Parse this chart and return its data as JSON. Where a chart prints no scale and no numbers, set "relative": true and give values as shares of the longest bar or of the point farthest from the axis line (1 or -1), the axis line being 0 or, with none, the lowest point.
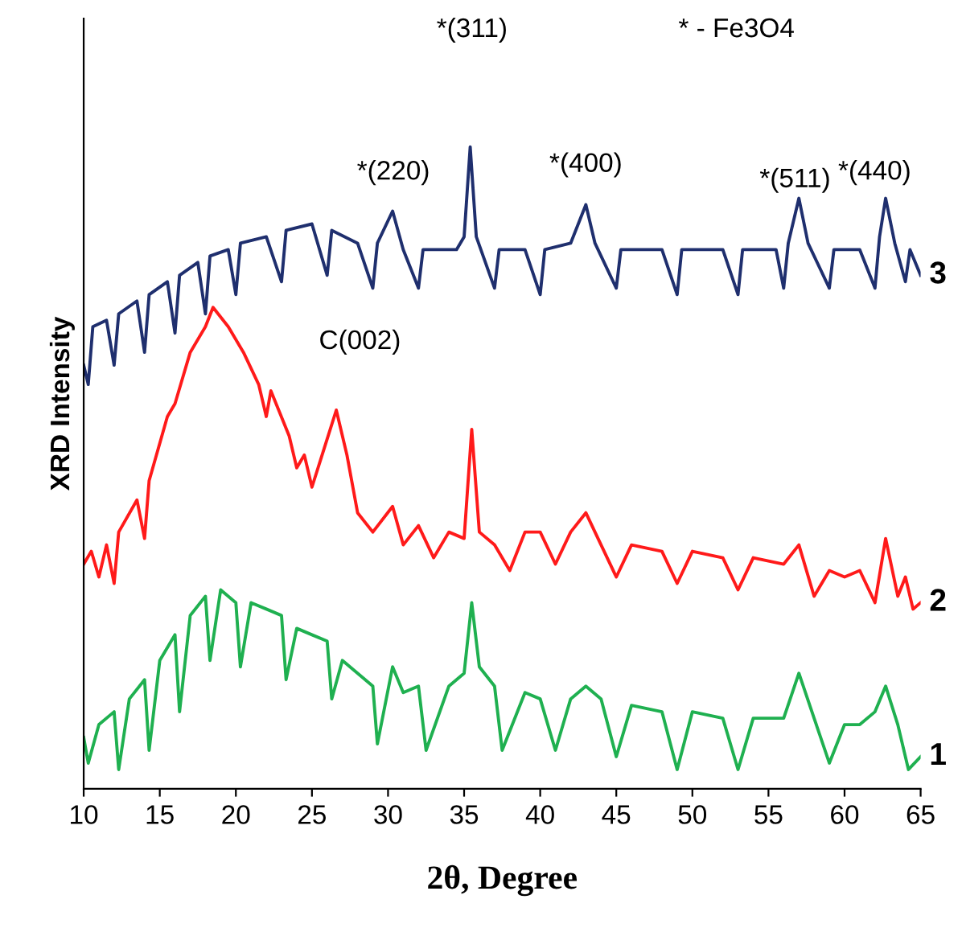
{
  "chart_data": {
    "type": "line",
    "relative": true,
    "xlabel": "2θ, Degree",
    "ylabel": "XRD Intensity",
    "xlim": [
      10,
      65
    ],
    "xticks": [
      10,
      15,
      20,
      25,
      30,
      35,
      40,
      45,
      50,
      55,
      60,
      65
    ],
    "tick_labels": "x",
    "grid": false,
    "annotations": [
      "* - Fe3O4",
      "*(311)",
      "*(220)",
      "*(400)",
      "*(511)",
      "*(440)",
      "C(002)"
    ],
    "series": [
      {
        "name": "3",
        "color": "#1f2f6e",
        "x": [
          10,
          10.3,
          10.6,
          11.5,
          12,
          12.3,
          13.5,
          14,
          14.3,
          15.5,
          16,
          16.3,
          17.5,
          18,
          18.3,
          19.5,
          20,
          20.3,
          22,
          23,
          23.3,
          25,
          26,
          26.3,
          28,
          29,
          29.3,
          30.3,
          31,
          32,
          32.3,
          34.5,
          35,
          35.4,
          35.8,
          37,
          37.3,
          39,
          40,
          40.3,
          42,
          43,
          43.6,
          45,
          45.3,
          48,
          49,
          49.3,
          52,
          53,
          53.3,
          55.5,
          56,
          56.3,
          57,
          57.6,
          59,
          59.3,
          61,
          62,
          62.3,
          62.7,
          63.3,
          64,
          64.3,
          65
        ],
        "values": [
          0.66,
          0.63,
          0.72,
          0.73,
          0.66,
          0.74,
          0.76,
          0.68,
          0.77,
          0.79,
          0.71,
          0.8,
          0.82,
          0.74,
          0.83,
          0.84,
          0.77,
          0.85,
          0.86,
          0.79,
          0.87,
          0.88,
          0.8,
          0.87,
          0.85,
          0.78,
          0.85,
          0.9,
          0.84,
          0.78,
          0.84,
          0.84,
          0.86,
          1.0,
          0.86,
          0.78,
          0.84,
          0.84,
          0.77,
          0.84,
          0.85,
          0.91,
          0.85,
          0.78,
          0.84,
          0.84,
          0.77,
          0.84,
          0.84,
          0.77,
          0.84,
          0.84,
          0.78,
          0.85,
          0.92,
          0.85,
          0.78,
          0.84,
          0.84,
          0.78,
          0.86,
          0.92,
          0.85,
          0.79,
          0.84,
          0.8
        ]
      },
      {
        "name": "2",
        "color": "#ff1a1a",
        "x": [
          10,
          10.5,
          11,
          11.5,
          12,
          12.3,
          13.5,
          14,
          14.3,
          15.5,
          16,
          17,
          18,
          18.5,
          19.5,
          20.5,
          21.5,
          22,
          22.3,
          23.5,
          24,
          24.5,
          25,
          25.8,
          26.6,
          27.3,
          28,
          29,
          30.3,
          31,
          32,
          33,
          34,
          35,
          35.5,
          36,
          37,
          38,
          39,
          40,
          41,
          42,
          43,
          44,
          45,
          46,
          48,
          49,
          50,
          52,
          53,
          54,
          56,
          57,
          58,
          59,
          60,
          61,
          62,
          62.7,
          63.5,
          64,
          64.5,
          65
        ],
        "values": [
          0.35,
          0.37,
          0.33,
          0.38,
          0.32,
          0.4,
          0.45,
          0.39,
          0.48,
          0.58,
          0.6,
          0.68,
          0.72,
          0.75,
          0.72,
          0.68,
          0.63,
          0.58,
          0.62,
          0.55,
          0.5,
          0.52,
          0.47,
          0.53,
          0.59,
          0.52,
          0.43,
          0.4,
          0.44,
          0.38,
          0.41,
          0.36,
          0.4,
          0.39,
          0.56,
          0.4,
          0.38,
          0.34,
          0.4,
          0.4,
          0.35,
          0.4,
          0.43,
          0.38,
          0.33,
          0.38,
          0.37,
          0.32,
          0.37,
          0.36,
          0.31,
          0.36,
          0.35,
          0.38,
          0.3,
          0.34,
          0.33,
          0.34,
          0.29,
          0.39,
          0.3,
          0.33,
          0.28,
          0.29
        ]
      },
      {
        "name": "1",
        "color": "#1fb050",
        "x": [
          10,
          10.3,
          11,
          12,
          12.3,
          13,
          14,
          14.3,
          15,
          16,
          16.3,
          17,
          18,
          18.3,
          19,
          20,
          20.3,
          21,
          22,
          23,
          23.3,
          24,
          25,
          26,
          26.3,
          27,
          28,
          29,
          29.3,
          30.3,
          31,
          32,
          32.5,
          34,
          35,
          35.5,
          36,
          37,
          37.5,
          39,
          40,
          41,
          42,
          43,
          44,
          45,
          46,
          48,
          49,
          50,
          52,
          53,
          54,
          56,
          57,
          58,
          59,
          60,
          61,
          62,
          62.7,
          63.5,
          64.2,
          65
        ],
        "values": [
          0.08,
          0.04,
          0.1,
          0.12,
          0.03,
          0.14,
          0.17,
          0.06,
          0.2,
          0.24,
          0.12,
          0.27,
          0.3,
          0.2,
          0.31,
          0.29,
          0.19,
          0.29,
          0.28,
          0.27,
          0.17,
          0.25,
          0.24,
          0.23,
          0.14,
          0.2,
          0.18,
          0.16,
          0.07,
          0.19,
          0.15,
          0.16,
          0.06,
          0.16,
          0.18,
          0.29,
          0.19,
          0.16,
          0.06,
          0.15,
          0.14,
          0.06,
          0.14,
          0.16,
          0.14,
          0.05,
          0.13,
          0.12,
          0.03,
          0.12,
          0.11,
          0.03,
          0.11,
          0.11,
          0.18,
          0.11,
          0.04,
          0.1,
          0.1,
          0.12,
          0.16,
          0.1,
          0.03,
          0.05
        ]
      }
    ]
  }
}
